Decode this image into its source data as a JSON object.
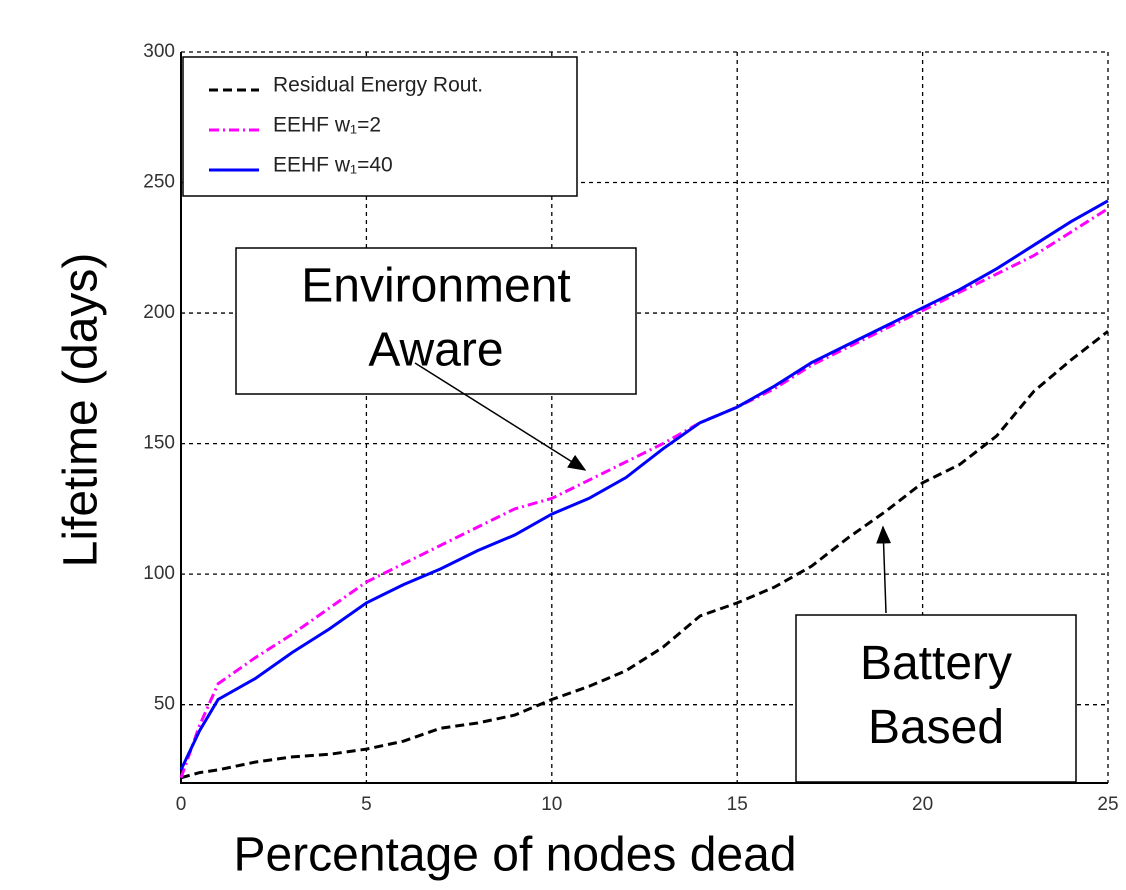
{
  "chart_data": {
    "type": "line",
    "x_label": "Percentage of nodes dead",
    "y_label": "Lifetime (days)",
    "x": [
      0,
      0.5,
      1,
      2,
      3,
      4,
      5,
      6,
      7,
      8,
      9,
      10,
      11,
      12,
      13,
      14,
      15,
      16,
      17,
      18,
      19,
      20,
      21,
      22,
      23,
      24,
      25
    ],
    "series": [
      {
        "name": "Residual Energy Rout.",
        "color": "#000000",
        "style": "dashed",
        "values": [
          22,
          24,
          25,
          28,
          30,
          31,
          33,
          36,
          41,
          43,
          46,
          52,
          57,
          63,
          72,
          84,
          89,
          95,
          103,
          114,
          124,
          135,
          142,
          153,
          170,
          182,
          193
        ]
      },
      {
        "name": "EEHF w₁=2",
        "color": "#ff00ff",
        "style": "dashdot",
        "values": [
          22,
          42,
          58,
          68,
          77,
          87,
          97,
          104,
          111,
          118,
          125,
          129,
          136,
          143,
          150,
          158,
          164,
          171,
          180,
          187,
          194,
          201,
          208,
          215,
          222,
          231,
          240
        ]
      },
      {
        "name": "EEHF w₁=40",
        "color": "#0000ff",
        "style": "solid",
        "values": [
          25,
          40,
          52,
          60,
          70,
          79,
          89,
          96,
          102,
          109,
          115,
          123,
          129,
          137,
          148,
          158,
          164,
          172,
          181,
          188,
          195,
          202,
          209,
          217,
          226,
          235,
          243
        ]
      }
    ],
    "xlim": [
      0,
      25
    ],
    "ylim": [
      20,
      300
    ],
    "xticks": [
      0,
      5,
      10,
      15,
      20,
      25
    ],
    "yticks": [
      50,
      100,
      150,
      200,
      250,
      300
    ],
    "grid": true,
    "legend": "upper left",
    "annotations": [
      {
        "lines": [
          "Environment",
          "Aware"
        ]
      },
      {
        "lines": [
          "Battery",
          "Based"
        ]
      }
    ]
  }
}
